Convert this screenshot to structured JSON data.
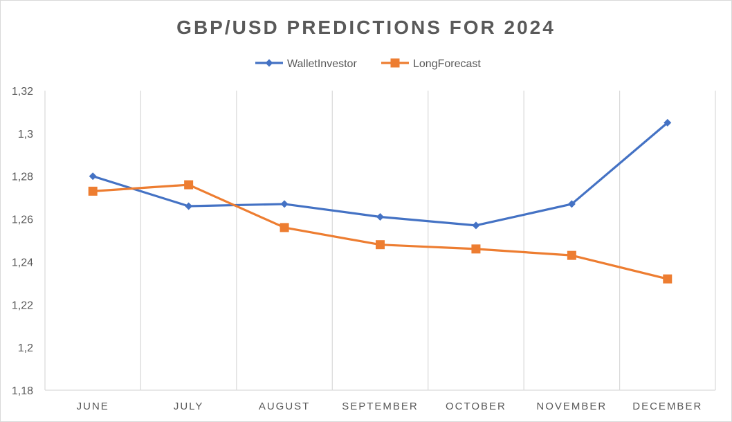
{
  "chart_data": {
    "type": "line",
    "title": "GBP/USD PREDICTIONS FOR 2024",
    "categories": [
      "JUNE",
      "JULY",
      "AUGUST",
      "SEPTEMBER",
      "OCTOBER",
      "NOVEMBER",
      "DECEMBER"
    ],
    "series": [
      {
        "name": "WalletInvestor",
        "color": "#4472c4",
        "marker": "diamond",
        "values": [
          1.28,
          1.266,
          1.267,
          1.261,
          1.257,
          1.267,
          1.305
        ]
      },
      {
        "name": "LongForecast",
        "color": "#ed7d31",
        "marker": "square",
        "values": [
          1.273,
          1.276,
          1.256,
          1.248,
          1.246,
          1.243,
          1.232
        ]
      }
    ],
    "ylim": [
      1.18,
      1.32
    ],
    "yticks": [
      {
        "value": 1.18,
        "label": "1,18"
      },
      {
        "value": 1.2,
        "label": "1,2"
      },
      {
        "value": 1.22,
        "label": "1,22"
      },
      {
        "value": 1.24,
        "label": "1,24"
      },
      {
        "value": 1.26,
        "label": "1,26"
      },
      {
        "value": 1.28,
        "label": "1,28"
      },
      {
        "value": 1.3,
        "label": "1,3"
      },
      {
        "value": 1.32,
        "label": "1,32"
      }
    ],
    "xlabel": "",
    "ylabel": "",
    "legend_position": "top",
    "grid": "vertical"
  }
}
